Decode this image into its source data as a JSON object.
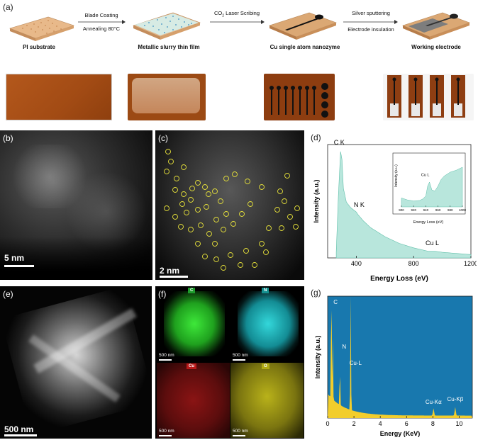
{
  "panel_a": {
    "label": "(a)",
    "steps": [
      "PI substrate",
      "Metallic slurry  thin film",
      "Cu single atom nanozyme",
      "Working electrode"
    ],
    "arrows": [
      {
        "top": "Blade Coating",
        "bottom": "Annealing 80°C"
      },
      {
        "top": "CO",
        "sub": "2",
        "top_rest": "Laser Scribing",
        "bottom": ""
      },
      {
        "top": "Silver sputtering",
        "bottom": "Electrode  insulation"
      }
    ]
  },
  "panel_b": {
    "label": "(b)",
    "scale": "5 nm"
  },
  "panel_c": {
    "label": "(c)",
    "scale": "2 nm"
  },
  "panel_d": {
    "label": "(d)"
  },
  "panel_e": {
    "label": "(e)",
    "scale": "500 nm"
  },
  "panel_f": {
    "label": "(f)",
    "maps": [
      {
        "element": "C",
        "scale": "500 nm",
        "color": "#2fd12a"
      },
      {
        "element": "N",
        "scale": "500 nm",
        "color": "#23c6c9"
      },
      {
        "element": "Cu",
        "scale": "500 nm",
        "color": "#d51f1f"
      },
      {
        "element": "O",
        "scale": "500 nm",
        "color": "#c9c21c"
      }
    ]
  },
  "panel_g": {
    "label": "(g)"
  },
  "chart_data": [
    {
      "type": "area",
      "panel": "d",
      "xlabel": "Energy Loss (eV)",
      "ylabel": "Intensity (a.u.)",
      "xlim": [
        200,
        1200
      ],
      "xticks": [
        400,
        800,
        1200
      ],
      "fill_color": "#b8e6dc",
      "x": [
        260,
        275,
        290,
        300,
        310,
        330,
        360,
        380,
        400,
        410,
        450,
        500,
        600,
        700,
        800,
        900,
        950,
        1000,
        1100,
        1200
      ],
      "y": [
        0.05,
        0.55,
        0.95,
        0.88,
        0.62,
        0.5,
        0.45,
        0.43,
        0.41,
        0.39,
        0.33,
        0.27,
        0.19,
        0.13,
        0.09,
        0.06,
        0.06,
        0.05,
        0.04,
        0.03
      ],
      "annotations": [
        {
          "text": "C K",
          "x": 300
        },
        {
          "text": "N K",
          "x": 400
        },
        {
          "text": "Cu L",
          "x": 960
        }
      ],
      "inset": {
        "xlabel": "Energy Loss (eV)",
        "ylabel": "Intensity (a.u.)",
        "xlim": [
          900,
          1000
        ],
        "xticks": [
          900,
          920,
          940,
          960,
          980,
          1000
        ],
        "annotation": "Cu L",
        "x": [
          900,
          910,
          920,
          930,
          935,
          940,
          943,
          946,
          950,
          955,
          960,
          965,
          970,
          975,
          980,
          990,
          1000
        ],
        "y": [
          0.18,
          0.14,
          0.12,
          0.13,
          0.16,
          0.22,
          0.42,
          0.5,
          0.34,
          0.32,
          0.42,
          0.55,
          0.62,
          0.66,
          0.7,
          0.74,
          0.8
        ]
      }
    },
    {
      "type": "area",
      "panel": "g",
      "xlabel": "Energy (KeV)",
      "ylabel": "Intensity (a.u.)",
      "xlim": [
        0,
        11
      ],
      "xticks": [
        0,
        2,
        4,
        6,
        8,
        10
      ],
      "fill_color": "#f2cd2c",
      "background_color": "#1878ae",
      "peaks": [
        {
          "x": 0.28,
          "y": 1.0
        },
        {
          "x": 0.39,
          "y": 0.55
        },
        {
          "x": 0.93,
          "y": 0.32
        },
        {
          "x": 1.75,
          "y": 0.97
        },
        {
          "x": 8.05,
          "y": 0.06
        },
        {
          "x": 9.7,
          "y": 0.07
        }
      ],
      "annotations": [
        {
          "text": "C",
          "x": 0.28
        },
        {
          "text": "N",
          "x": 0.39
        },
        {
          "text": "Cu-L",
          "x": 0.93
        },
        {
          "text": "Cu-Kα",
          "x": 8.05
        },
        {
          "text": "Cu-Kβ",
          "x": 9.7
        }
      ]
    }
  ]
}
